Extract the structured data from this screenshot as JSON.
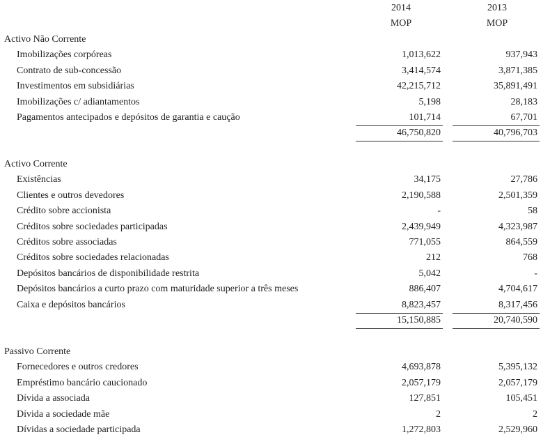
{
  "header": {
    "years": [
      "2014",
      "2013"
    ],
    "currency": [
      "MOP",
      "MOP"
    ]
  },
  "sections": [
    {
      "title": "Activo Não Corrente",
      "rows": [
        {
          "label": "Imobilizações corpóreas",
          "values": [
            "1,013,622",
            "937,943"
          ]
        },
        {
          "label": "Contrato de sub-concessão",
          "values": [
            "3,414,574",
            "3,871,385"
          ]
        },
        {
          "label": "Investimentos em subsidiárias",
          "values": [
            "42,215,712",
            "35,891,491"
          ]
        },
        {
          "label": "Imobilizações c/ adiantamentos",
          "values": [
            "5,198",
            "28,183"
          ]
        },
        {
          "label": "Pagamentos antecipados e depósitos de garantia e caução",
          "values": [
            "101,714",
            "67,701"
          ]
        }
      ],
      "total": [
        "46,750,820",
        "40,796,703"
      ]
    },
    {
      "title": "Activo Corrente",
      "rows": [
        {
          "label": "Existências",
          "values": [
            "34,175",
            "27,786"
          ]
        },
        {
          "label": "Clientes e outros devedores",
          "values": [
            "2,190,588",
            "2,501,359"
          ]
        },
        {
          "label": "Crédito sobre accionista",
          "values": [
            "-",
            "58"
          ]
        },
        {
          "label": "Créditos sobre sociedades participadas",
          "values": [
            "2,439,949",
            "4,323,987"
          ]
        },
        {
          "label": "Créditos sobre associadas",
          "values": [
            "771,055",
            "864,559"
          ]
        },
        {
          "label": "Créditos sobre sociedades relacionadas",
          "values": [
            "212",
            "768"
          ]
        },
        {
          "label": "Depósitos bancários de disponibilidade restrita",
          "values": [
            "5,042",
            "-"
          ]
        },
        {
          "label": "Depósitos bancários a curto prazo com maturidade superior a três meses",
          "values": [
            "886,407",
            "4,704,617"
          ]
        },
        {
          "label": "Caixa e depósitos bancários",
          "values": [
            "8,823,457",
            "8,317,456"
          ]
        }
      ],
      "total": [
        "15,150,885",
        "20,740,590"
      ]
    },
    {
      "title": "Passivo Corrente",
      "rows": [
        {
          "label": "Fornecedores e outros credores",
          "values": [
            "4,693,878",
            "5,395,132"
          ]
        },
        {
          "label": "Empréstimo bancário caucionado",
          "values": [
            "2,057,179",
            "2,057,179"
          ]
        },
        {
          "label": "Dívida a associada",
          "values": [
            "127,851",
            "105,451"
          ]
        },
        {
          "label": "Dívida a sociedade mãe",
          "values": [
            "2",
            "2"
          ]
        },
        {
          "label": "Dívidas a sociedade participada",
          "values": [
            "1,272,803",
            "2,529,960"
          ]
        }
      ]
    }
  ]
}
